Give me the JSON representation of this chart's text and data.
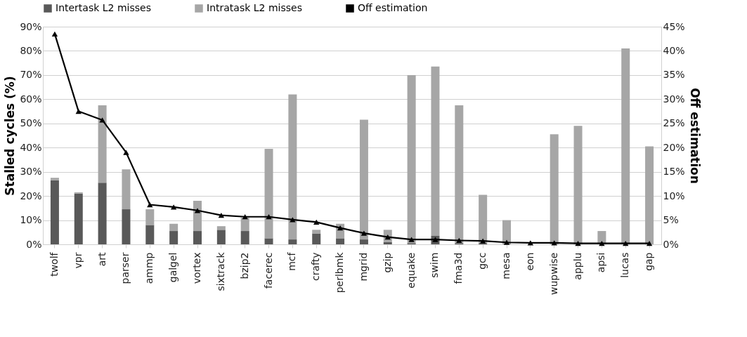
{
  "chart_data": {
    "type": "bar",
    "stacked": true,
    "ylabel": "Stalled cycles (%)",
    "y2label": "Off estimation",
    "categories": [
      "twolf",
      "vpr",
      "art",
      "parser",
      "ammp",
      "galgel",
      "vortex",
      "sixtrack",
      "bzip2",
      "facerec",
      "mcf",
      "crafty",
      "perlbmk",
      "mgrid",
      "gzip",
      "equake",
      "swim",
      "fma3d",
      "gcc",
      "mesa",
      "eon",
      "wupwise",
      "applu",
      "apsi",
      "lucas",
      "gap"
    ],
    "series": [
      {
        "name": "Intertask L2 misses",
        "color": "#595959",
        "values": [
          26.5,
          21,
          25.5,
          14.5,
          8,
          5.5,
          5.5,
          6,
          5.5,
          2.5,
          2,
          4.5,
          2.5,
          2,
          1,
          0.5,
          3.5,
          0.5,
          0.5,
          0,
          0,
          0,
          0,
          0,
          0,
          0
        ]
      },
      {
        "name": "Intratask L2 misses",
        "color": "#a6a6a6",
        "values": [
          1,
          0.5,
          32,
          16.5,
          6.5,
          3,
          12.5,
          1.5,
          5.5,
          37,
          60,
          1.5,
          6,
          49.5,
          5,
          69.5,
          70,
          57,
          20,
          10,
          0,
          45.5,
          49,
          5.5,
          81,
          40.5
        ]
      },
      {
        "name": "Off estimation",
        "type": "line",
        "axis": "y2",
        "color": "#000000",
        "marker": "triangle",
        "line_style": "solid",
        "values": [
          43.5,
          27.5,
          25.7,
          19,
          8.2,
          7.7,
          7,
          6,
          5.7,
          5.7,
          5.1,
          4.6,
          3.4,
          2.3,
          1.5,
          1,
          1,
          0.8,
          0.7,
          0.4,
          0.3,
          0.3,
          0.2,
          0.2,
          0.2,
          0.2
        ]
      }
    ],
    "ylim": [
      0,
      90
    ],
    "yticks": [
      {
        "value": 0,
        "label": "0%"
      },
      {
        "value": 10,
        "label": "10%"
      },
      {
        "value": 20,
        "label": "20%"
      },
      {
        "value": 30,
        "label": "30%"
      },
      {
        "value": 40,
        "label": "40%"
      },
      {
        "value": 50,
        "label": "50%"
      },
      {
        "value": 60,
        "label": "60%"
      },
      {
        "value": 70,
        "label": "70%"
      },
      {
        "value": 80,
        "label": "80%"
      },
      {
        "value": 90,
        "label": "90%"
      }
    ],
    "y2lim": [
      0,
      45
    ],
    "y2ticks": [
      {
        "value": 0,
        "label": "0%"
      },
      {
        "value": 5,
        "label": "5%"
      },
      {
        "value": 10,
        "label": "10%"
      },
      {
        "value": 15,
        "label": "15%"
      },
      {
        "value": 20,
        "label": "20%"
      },
      {
        "value": 25,
        "label": "25%"
      },
      {
        "value": 30,
        "label": "30%"
      },
      {
        "value": 35,
        "label": "35%"
      },
      {
        "value": 40,
        "label": "40%"
      },
      {
        "value": 45,
        "label": "45%"
      }
    ],
    "grid": "y",
    "legend": "top"
  }
}
